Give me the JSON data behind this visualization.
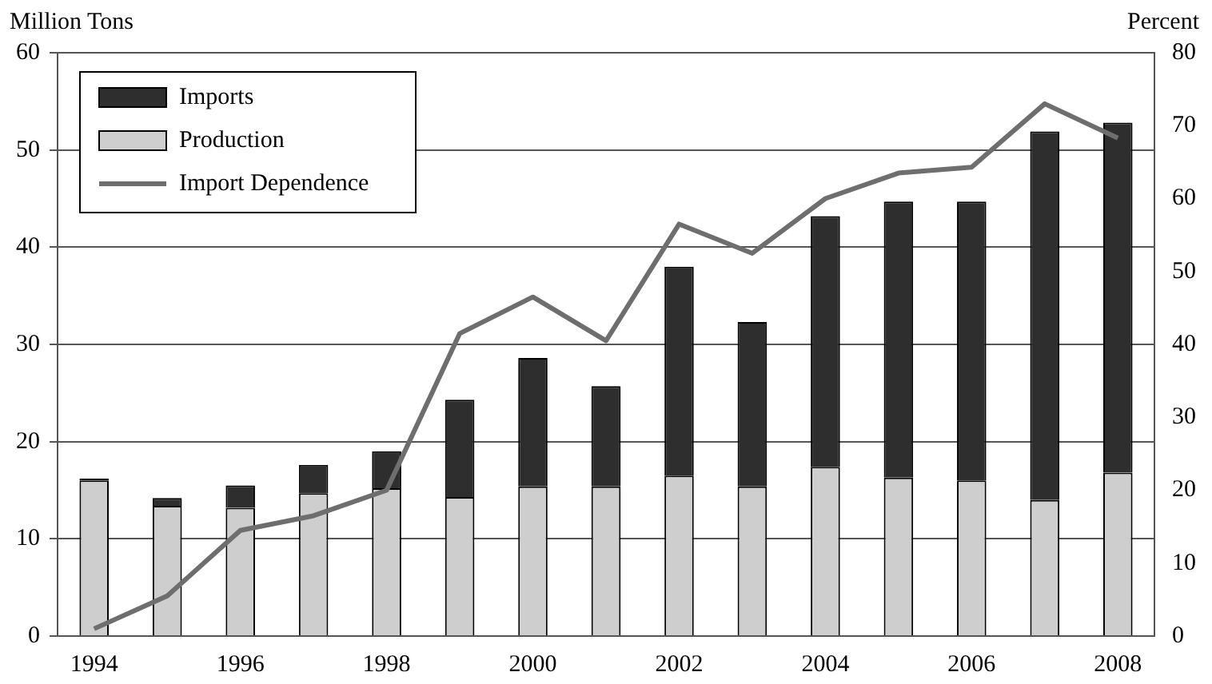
{
  "chart_data": {
    "type": "bar",
    "stacked": true,
    "ylabel": "Million Tons",
    "y2label": "Percent",
    "categories": [
      "1994",
      null,
      "1996",
      null,
      "1998",
      null,
      "2000",
      null,
      "2002",
      null,
      "2004",
      null,
      "2006",
      null,
      "2008"
    ],
    "series": [
      {
        "name": "Production",
        "color": "#cecece",
        "values": [
          16.0,
          13.4,
          13.2,
          14.7,
          15.2,
          14.3,
          15.4,
          15.4,
          16.5,
          15.4,
          17.4,
          16.3,
          16.0,
          14.0,
          16.8
        ]
      },
      {
        "name": "Imports",
        "color": "#2e2e2e",
        "values": [
          0.2,
          0.8,
          2.3,
          2.9,
          3.8,
          10.0,
          13.2,
          10.3,
          21.5,
          16.9,
          25.8,
          28.4,
          28.7,
          37.9,
          36.0
        ]
      },
      {
        "name": "Import Dependence",
        "type": "line",
        "axis": "y2",
        "color": "#6e6e6e",
        "values": [
          1,
          5.5,
          14.5,
          16.5,
          20,
          41.5,
          46.5,
          40.5,
          56.5,
          52.5,
          60,
          63.5,
          64.3,
          73,
          68.3
        ]
      }
    ],
    "ylim": [
      0,
      60
    ],
    "yticks": [
      0,
      10,
      20,
      30,
      40,
      50,
      60
    ],
    "y2lim": [
      0,
      80
    ],
    "y2ticks": [
      0,
      10,
      20,
      30,
      40,
      50,
      60,
      70,
      80
    ],
    "grid": "y",
    "legend": "top left",
    "marker": "none"
  }
}
